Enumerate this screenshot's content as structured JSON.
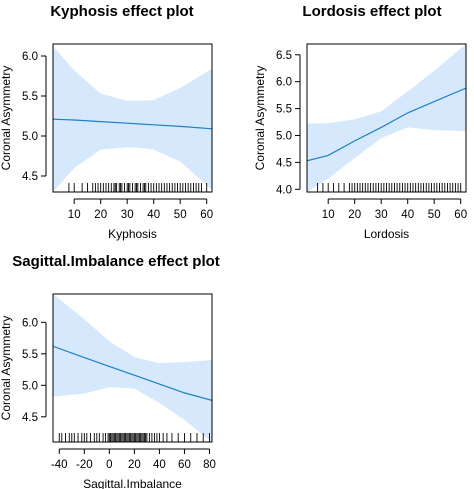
{
  "chart_data": [
    {
      "type": "line",
      "title": "Kyphosis effect plot",
      "xlabel": "Kyphosis",
      "ylabel": "Coronal Asymmetry",
      "xlim": [
        2,
        62
      ],
      "ylim": [
        4.3,
        6.15
      ],
      "xticks": [
        10,
        20,
        30,
        40,
        50,
        60
      ],
      "xtick_labels": [
        "10",
        "20",
        "30",
        "40",
        "50",
        "60"
      ],
      "yticks": [
        4.5,
        5.0,
        5.5,
        6.0
      ],
      "ytick_labels": [
        "4.5",
        "5.0",
        "5.5",
        "6.0"
      ],
      "grid": false,
      "series": [
        {
          "x": [
            2,
            10,
            20,
            30,
            35,
            40,
            50,
            62
          ],
          "values": [
            5.21,
            5.2,
            5.18,
            5.16,
            5.15,
            5.14,
            5.12,
            5.09
          ],
          "lower": [
            4.3,
            4.6,
            4.83,
            4.86,
            4.85,
            4.83,
            4.68,
            4.33
          ],
          "upper": [
            6.12,
            5.82,
            5.53,
            5.44,
            5.44,
            5.45,
            5.6,
            5.84
          ]
        }
      ],
      "rug": [
        8,
        10,
        13,
        15,
        17,
        18,
        19,
        20,
        21,
        22,
        23,
        24,
        25,
        25.5,
        26,
        27,
        27.5,
        28,
        29,
        30,
        30.5,
        31,
        32,
        33,
        33.5,
        34,
        35,
        36,
        36.5,
        37,
        38,
        39,
        40,
        41,
        42,
        43,
        44,
        45,
        46,
        47,
        48,
        49,
        50,
        51,
        52,
        53,
        54,
        55,
        56,
        57,
        58,
        60
      ]
    },
    {
      "type": "line",
      "title": "Lordosis effect plot",
      "xlabel": "Lordosis",
      "ylabel": "Coronal Asymmetry",
      "xlim": [
        2,
        62
      ],
      "ylim": [
        3.95,
        6.7
      ],
      "xticks": [
        10,
        20,
        30,
        40,
        50,
        60
      ],
      "xtick_labels": [
        "10",
        "20",
        "30",
        "40",
        "50",
        "60"
      ],
      "yticks": [
        4.0,
        4.5,
        5.0,
        5.5,
        6.0,
        6.5
      ],
      "ytick_labels": [
        "4.0",
        "4.5",
        "5.0",
        "5.5",
        "6.0",
        "6.5"
      ],
      "grid": false,
      "series": [
        {
          "x": [
            2,
            10,
            20,
            30,
            40,
            50,
            62
          ],
          "values": [
            4.53,
            4.63,
            4.9,
            5.15,
            5.42,
            5.63,
            5.88
          ],
          "lower": [
            3.95,
            4.2,
            4.58,
            4.95,
            5.15,
            5.1,
            5.08
          ],
          "upper": [
            5.22,
            5.23,
            5.3,
            5.45,
            5.82,
            6.2,
            6.7
          ]
        }
      ],
      "rug": [
        6,
        8,
        10,
        12,
        14,
        16,
        18,
        19,
        20,
        21,
        22,
        23,
        24,
        25,
        26,
        27,
        28,
        29,
        30,
        31,
        32,
        33,
        34,
        35,
        36,
        37,
        38,
        39,
        40,
        41,
        42,
        43,
        44,
        45,
        46,
        47,
        48,
        49,
        50,
        51,
        52,
        53,
        54,
        55,
        56,
        57,
        58,
        59,
        60
      ]
    },
    {
      "type": "line",
      "title": "Sagittal.Imbalance effect plot",
      "xlabel": "Sagittal.Imbalance",
      "ylabel": "Coronal Asymmetry",
      "xlim": [
        -45,
        82
      ],
      "ylim": [
        4.1,
        6.45
      ],
      "xticks": [
        -40,
        -20,
        0,
        20,
        40,
        60,
        80
      ],
      "xtick_labels": [
        "-40",
        "-20",
        "0",
        "20",
        "40",
        "60",
        "80"
      ],
      "yticks": [
        4.5,
        5.0,
        5.5,
        6.0
      ],
      "ytick_labels": [
        "4.5",
        "5.0",
        "5.5",
        "6.0"
      ],
      "grid": false,
      "series": [
        {
          "x": [
            -45,
            -20,
            0,
            20,
            40,
            60,
            82
          ],
          "values": [
            5.62,
            5.44,
            5.3,
            5.16,
            5.02,
            4.88,
            4.76
          ],
          "lower": [
            4.82,
            4.87,
            4.97,
            4.95,
            4.72,
            4.45,
            4.1
          ],
          "upper": [
            6.45,
            6.05,
            5.7,
            5.45,
            5.35,
            5.37,
            5.4
          ]
        }
      ],
      "rug": [
        -40,
        -38,
        -35,
        -32,
        -30,
        -28,
        -25,
        -22,
        -20,
        -18,
        -15,
        -12,
        -10,
        -8,
        -5,
        -3,
        -1,
        0,
        1,
        2,
        3,
        4,
        5,
        6,
        7,
        8,
        9,
        10,
        11,
        12,
        13,
        14,
        15,
        16,
        17,
        18,
        19,
        20,
        21,
        22,
        23,
        24,
        25,
        26,
        27,
        28,
        29,
        30,
        32,
        34,
        36,
        38,
        40,
        43,
        46,
        50,
        55,
        60,
        65,
        70,
        75,
        80
      ]
    }
  ]
}
